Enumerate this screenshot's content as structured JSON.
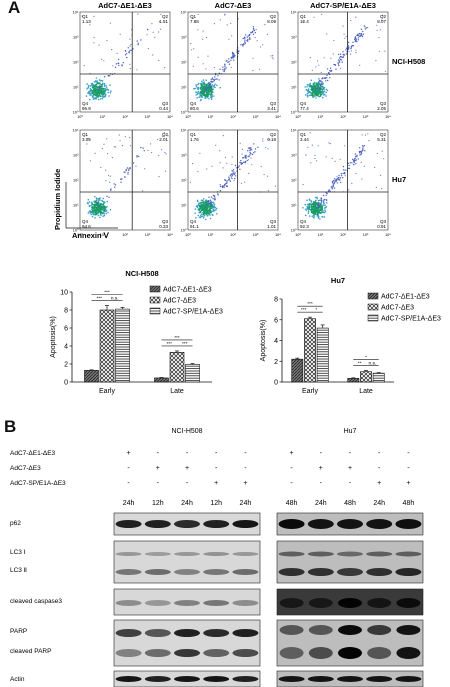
{
  "panel_a_label": "A",
  "panel_b_label": "B",
  "flow": {
    "col_titles": [
      "AdC7-ΔE1-ΔE3",
      "AdC7-ΔE3",
      "AdC7-SP/E1A-ΔE3"
    ],
    "row_labels": [
      "NCI-H508",
      "Hu7"
    ],
    "x_axis_label": "Annexin Ⅴ",
    "y_axis_label": "Propidium Iodide",
    "quadrant_names": [
      "Q1",
      "Q2",
      "Q3",
      "Q4"
    ],
    "tick_labels": [
      "10⁰",
      "10¹",
      "10²",
      "10³",
      "10⁴"
    ],
    "plots": [
      {
        "q1": "1.13",
        "q2": "1.51",
        "q3": "0.44",
        "q4": "96.9"
      },
      {
        "q1": "7.88",
        "q2": "8.09",
        "q3": "3.41",
        "q4": "80.6"
      },
      {
        "q1": "12.4",
        "q2": "8.07",
        "q3": "2.05",
        "q4": "77.4"
      },
      {
        "q1": "3.05",
        "q2": "2.01",
        "q3": "0.33",
        "q4": "94.6"
      },
      {
        "q1": "1.76",
        "q2": "6.18",
        "q3": "1.01",
        "q4": "91.1"
      },
      {
        "q1": "3.44",
        "q2": "5.31",
        "q3": "0.91",
        "q4": "92.3"
      }
    ]
  },
  "chart_data": [
    {
      "type": "bar",
      "title": "NCI-H508",
      "ylabel": "Apoptosis(%)",
      "categories": [
        "Early",
        "Late"
      ],
      "ylim": [
        0,
        10
      ],
      "yticks": [
        "0",
        "2",
        "4",
        "6",
        "8",
        "10"
      ],
      "series": [
        {
          "name": "AdC7-ΔE1-ΔE3",
          "values": [
            1.3,
            0.45
          ],
          "errors": [
            0.05,
            0.05
          ]
        },
        {
          "name": "AdC7-ΔE3",
          "values": [
            8.0,
            3.3
          ],
          "errors": [
            0.5,
            0.15
          ]
        },
        {
          "name": "AdC7-SP/E1A-ΔE3",
          "values": [
            8.1,
            1.95
          ],
          "errors": [
            0.2,
            0.1
          ]
        }
      ],
      "significance": [
        "***",
        "***",
        "n.s.",
        "***",
        "***",
        "***"
      ]
    },
    {
      "type": "bar",
      "title": "Hu7",
      "ylabel": "Apoptosis(%)",
      "categories": [
        "Early",
        "Late"
      ],
      "ylim": [
        0,
        8
      ],
      "yticks": [
        "0",
        "2",
        "4",
        "6",
        "8"
      ],
      "series": [
        {
          "name": "AdC7-ΔE1-ΔE3",
          "values": [
            2.2,
            0.35
          ],
          "errors": [
            0.1,
            0.05
          ]
        },
        {
          "name": "AdC7-ΔE3",
          "values": [
            6.1,
            1.0
          ],
          "errors": [
            0.15,
            0.1
          ]
        },
        {
          "name": "AdC7-SP/E1A-ΔE3",
          "values": [
            5.2,
            0.85
          ],
          "errors": [
            0.3,
            0.05
          ]
        }
      ],
      "significance": [
        "***",
        "***",
        "*",
        "**",
        "*",
        "n.s."
      ]
    }
  ],
  "blot": {
    "cells": [
      "NCI-H508",
      "Hu7"
    ],
    "conditions": [
      "AdC7-ΔE1-ΔE3",
      "AdC7-ΔE3",
      "AdC7-SP/E1A-ΔE3"
    ],
    "signs_left": [
      [
        "+",
        "-",
        "-",
        "-",
        "-"
      ],
      [
        "-",
        "+",
        "+",
        "-",
        "-"
      ],
      [
        "-",
        "-",
        "-",
        "+",
        "+"
      ]
    ],
    "signs_right": [
      [
        "+",
        "-",
        "-",
        "-",
        "-"
      ],
      [
        "-",
        "+",
        "+",
        "-",
        "-"
      ],
      [
        "-",
        "-",
        "-",
        "+",
        "+"
      ]
    ],
    "times_left": [
      "24h",
      "12h",
      "24h",
      "12h",
      "24h"
    ],
    "times_right": [
      "48h",
      "24h",
      "48h",
      "24h",
      "48h"
    ],
    "rows": [
      "p62",
      "LC3 Ⅰ",
      "LC3 Ⅱ",
      "cleaved caspase3",
      "PARP",
      "cleaved PARP",
      "Actin"
    ]
  }
}
